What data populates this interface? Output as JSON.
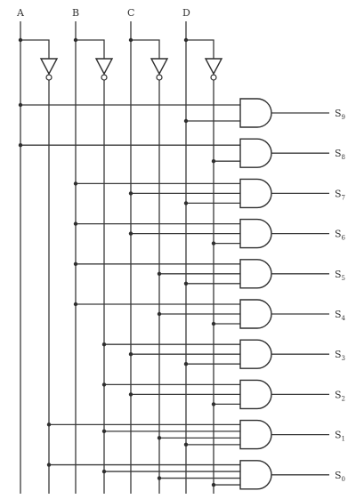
{
  "inputs": [
    "A",
    "B",
    "C",
    "D"
  ],
  "outputs": [
    {
      "base": "S",
      "sub": "9",
      "terms": [
        "A",
        "D"
      ]
    },
    {
      "base": "S",
      "sub": "8",
      "terms": [
        "A",
        "D'"
      ]
    },
    {
      "base": "S",
      "sub": "7",
      "terms": [
        "B",
        "C",
        "D"
      ]
    },
    {
      "base": "S",
      "sub": "6",
      "terms": [
        "B",
        "C",
        "D'"
      ]
    },
    {
      "base": "S",
      "sub": "5",
      "terms": [
        "B",
        "C'",
        "D"
      ]
    },
    {
      "base": "S",
      "sub": "4",
      "terms": [
        "B",
        "C'",
        "D'"
      ]
    },
    {
      "base": "S",
      "sub": "3",
      "terms": [
        "B'",
        "C",
        "D"
      ]
    },
    {
      "base": "S",
      "sub": "2",
      "terms": [
        "B'",
        "C",
        "D'"
      ]
    },
    {
      "base": "S",
      "sub": "1",
      "terms": [
        "A'",
        "B'",
        "C'",
        "D"
      ]
    },
    {
      "base": "S",
      "sub": "0",
      "terms": [
        "A'",
        "B'",
        "C'",
        "D'"
      ]
    }
  ]
}
